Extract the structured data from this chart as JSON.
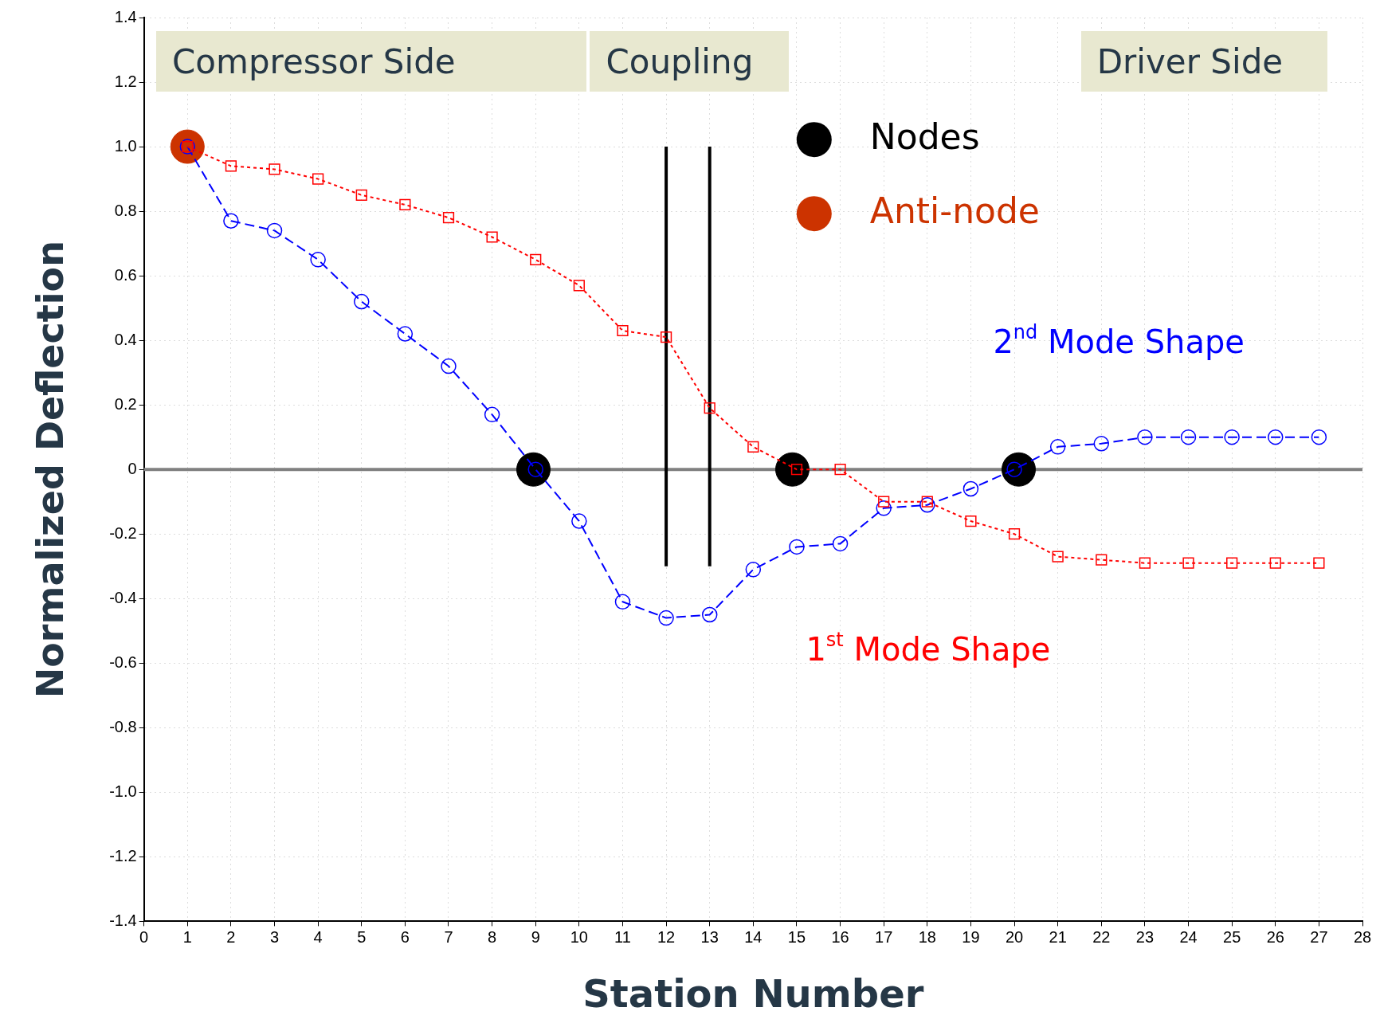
{
  "chart_data": {
    "type": "line",
    "xlabel": "Station Number",
    "ylabel": "Normalized Deflection",
    "xlim": [
      0,
      28
    ],
    "xticks": [
      0,
      1,
      2,
      3,
      4,
      5,
      6,
      7,
      8,
      9,
      10,
      11,
      12,
      13,
      14,
      15,
      16,
      17,
      18,
      19,
      20,
      21,
      22,
      23,
      24,
      25,
      26,
      27,
      28
    ],
    "ylim": [
      -1.4,
      1.4
    ],
    "yticks": [
      -1.4,
      -1.2,
      {
        "value": -1,
        "label": "-1.0"
      },
      -0.8,
      -0.6,
      -0.4,
      -0.2,
      0,
      0.2,
      0.4,
      0.6,
      0.8,
      {
        "value": 1,
        "label": "1.0"
      },
      1.2,
      1.4
    ],
    "grid": true,
    "legend": "top",
    "annotations": [
      "Compressor Side",
      "Coupling",
      "Driver Side"
    ],
    "ref_lines": [
      {
        "axis": "y",
        "value": 0,
        "color": "#808080"
      }
    ],
    "series": [
      {
        "name": "1$^{st}$ Mode Shape",
        "type": "line",
        "color": "#ff0000",
        "marker": "square",
        "line_style": "dotted",
        "x": [
          1,
          2,
          3,
          4,
          5,
          6,
          7,
          8,
          9,
          10,
          11,
          12,
          13,
          14,
          15,
          16,
          17,
          18,
          19,
          20,
          21,
          22,
          23,
          24,
          25,
          26,
          27
        ],
        "values": [
          1.0,
          0.94,
          0.93,
          0.9,
          0.85,
          0.82,
          0.78,
          0.72,
          0.65,
          0.57,
          0.43,
          0.41,
          0.19,
          0.07,
          0,
          0,
          -0.1,
          -0.1,
          -0.16,
          -0.2,
          -0.27,
          -0.28,
          -0.29,
          -0.29,
          -0.29,
          -0.29,
          -0.29
        ]
      },
      {
        "name": "2$^{nd}$ Mode Shape",
        "type": "line",
        "color": "#0000ff",
        "marker": "circle",
        "line_style": "dashed",
        "x": [
          1,
          2,
          3,
          4,
          5,
          6,
          7,
          8,
          9,
          10,
          11,
          12,
          13,
          14,
          15,
          16,
          17,
          18,
          19,
          20,
          21,
          22,
          23,
          24,
          25,
          26,
          27
        ],
        "values": [
          1.0,
          0.77,
          0.74,
          0.65,
          0.52,
          0.42,
          0.32,
          0.17,
          0,
          -0.16,
          -0.41,
          -0.46,
          -0.45,
          -0.31,
          -0.24,
          -0.23,
          -0.12,
          -0.11,
          -0.06,
          0,
          0.07,
          0.08,
          0.1,
          0.1,
          0.1,
          0.1,
          0.1
        ]
      },
      {
        "type": "line",
        "color": "#000000",
        "marker": "none",
        "line_style": "solid",
        "x": [
          12,
          12
        ],
        "values": [
          -0.3,
          1.0
        ]
      },
      {
        "type": "line",
        "color": "#000000",
        "marker": "none",
        "line_style": "solid",
        "x": [
          13,
          13
        ],
        "values": [
          -0.3,
          1.0
        ]
      },
      {
        "name": "Nodes",
        "type": "scatter",
        "color": "#000000",
        "marker": "circle",
        "x": [
          8.95,
          14.9,
          20.1
        ],
        "values": [
          0,
          0,
          0
        ]
      },
      {
        "name": "Anti-node",
        "type": "scatter",
        "color": "#cc3300",
        "marker": "circle",
        "x": [
          1
        ],
        "values": [
          1.0
        ]
      }
    ]
  }
}
